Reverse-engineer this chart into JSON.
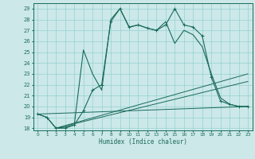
{
  "xlabel": "Humidex (Indice chaleur)",
  "bg_color": "#cce8e8",
  "line_color": "#1a6b5a",
  "xlim": [
    -0.5,
    23.5
  ],
  "ylim": [
    17.8,
    29.5
  ],
  "xticks": [
    0,
    1,
    2,
    3,
    4,
    5,
    6,
    7,
    8,
    9,
    10,
    11,
    12,
    13,
    14,
    15,
    16,
    17,
    18,
    19,
    20,
    21,
    22,
    23
  ],
  "yticks": [
    18,
    19,
    20,
    21,
    22,
    23,
    24,
    25,
    26,
    27,
    28,
    29
  ],
  "curve1_y": [
    19.3,
    19.0,
    18.0,
    18.0,
    18.3,
    19.6,
    21.5,
    22.0,
    27.8,
    29.0,
    27.3,
    27.5,
    27.2,
    27.0,
    27.5,
    29.0,
    27.5,
    27.3,
    26.5,
    22.7,
    20.5,
    20.2,
    20.0,
    20.0
  ],
  "curve2_y": [
    19.3,
    19.0,
    18.0,
    18.1,
    18.3,
    25.2,
    23.0,
    21.5,
    28.0,
    29.0,
    27.3,
    27.5,
    27.2,
    27.0,
    27.8,
    25.8,
    27.0,
    26.6,
    25.5,
    23.0,
    20.8,
    20.2,
    20.0,
    20.0
  ],
  "line1": {
    "x": [
      2,
      23
    ],
    "y": [
      18.0,
      23.0
    ]
  },
  "line2": {
    "x": [
      2,
      23
    ],
    "y": [
      18.0,
      22.3
    ]
  },
  "line3": {
    "x": [
      0,
      23
    ],
    "y": [
      19.3,
      20.0
    ]
  }
}
